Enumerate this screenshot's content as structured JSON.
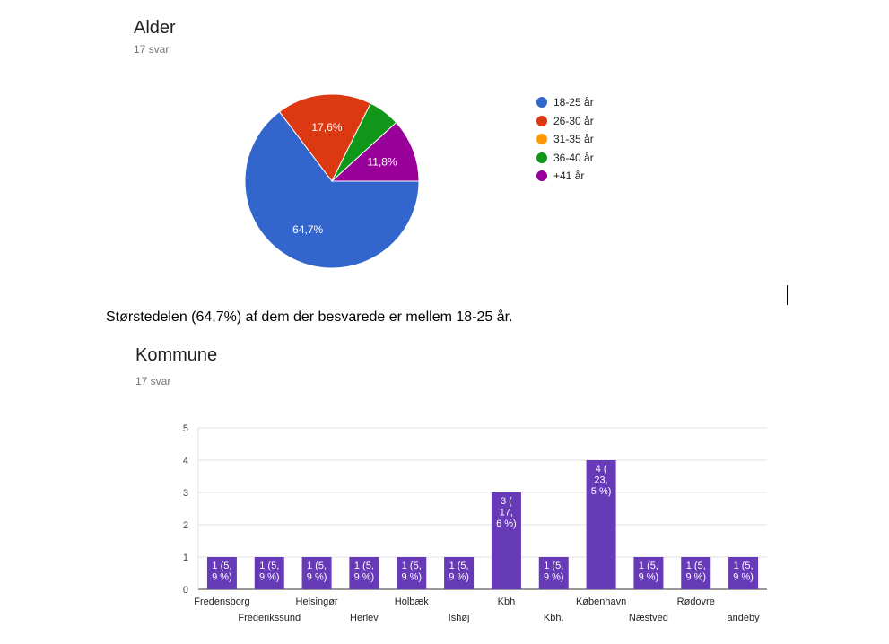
{
  "alder": {
    "title": "Alder",
    "subtitle": "17 svar"
  },
  "summary": "Størstedelen (64,7%) af dem der besvarede er mellem 18-25 år.",
  "kommune": {
    "title": "Kommune",
    "subtitle": "17 svar"
  },
  "chart_data": [
    {
      "type": "pie",
      "title": "Alder",
      "categories": [
        "18-25 år",
        "26-30 år",
        "31-35 år",
        "36-40 år",
        "+41 år"
      ],
      "values": [
        11,
        3,
        0,
        1,
        2
      ],
      "percent_labels": [
        "64,7%",
        "17,6%",
        "",
        "",
        "11,8%"
      ],
      "colors": [
        "#3366cc",
        "#dc3912",
        "#ff9900",
        "#109618",
        "#990099"
      ],
      "legend": "right"
    },
    {
      "type": "bar",
      "title": "Kommune",
      "categories": [
        "Fredensborg",
        "Frederikssund",
        "Helsingør",
        "Herlev",
        "Holbæk",
        "Ishøj",
        "Kbh",
        "Kbh.",
        "København",
        "Næstved",
        "Rødovre",
        "andeby"
      ],
      "values": [
        1,
        1,
        1,
        1,
        1,
        1,
        3,
        1,
        4,
        1,
        1,
        1
      ],
      "data_labels": [
        [
          "1 (5,",
          "9 %)"
        ],
        [
          "1 (5,",
          "9 %)"
        ],
        [
          "1 (5,",
          "9 %)"
        ],
        [
          "1 (5,",
          "9 %)"
        ],
        [
          "1 (5,",
          "9 %)"
        ],
        [
          "1 (5,",
          "9 %)"
        ],
        [
          "3 (",
          "17,",
          "6 %)"
        ],
        [
          "1 (5,",
          "9 %)"
        ],
        [
          "4 (",
          "23,",
          "5 %)"
        ],
        [
          "1 (5,",
          "9 %)"
        ],
        [
          "1 (5,",
          "9 %)"
        ],
        [
          "1 (5,",
          "9 %)"
        ]
      ],
      "yticks": [
        "0",
        "1",
        "2",
        "3",
        "4",
        "5"
      ],
      "ylim": [
        0,
        5
      ],
      "grid": true,
      "color": "#673ab7"
    }
  ]
}
